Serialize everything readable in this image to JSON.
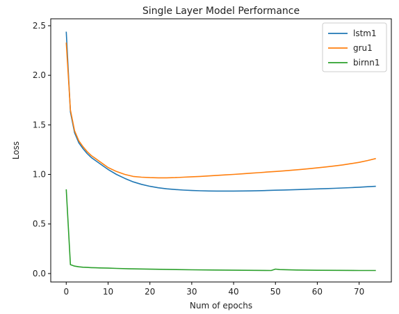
{
  "chart_data": {
    "type": "line",
    "title": "Single Layer Model Performance",
    "xlabel": "Num of epochs",
    "ylabel": "Loss",
    "xlim": [
      -3.7,
      77.7
    ],
    "ylim": [
      -0.085,
      2.57
    ],
    "xticks": [
      0,
      10,
      20,
      30,
      40,
      50,
      60,
      70
    ],
    "yticks": [
      0.0,
      0.5,
      1.0,
      1.5,
      2.0,
      2.5
    ],
    "ytick_labels": [
      "0.0",
      "0.5",
      "1.0",
      "1.5",
      "2.0",
      "2.5"
    ],
    "legend_position": "top-right",
    "grid": false,
    "series": [
      {
        "name": "lstm1",
        "color": "#1f77b4",
        "x": [
          0,
          1,
          2,
          3,
          4,
          5,
          6,
          7,
          8,
          9,
          10,
          12,
          14,
          16,
          18,
          20,
          22,
          24,
          26,
          28,
          30,
          32,
          34,
          36,
          38,
          40,
          42,
          44,
          46,
          48,
          50,
          52,
          54,
          56,
          58,
          60,
          62,
          64,
          66,
          68,
          70,
          72,
          74
        ],
        "values": [
          2.44,
          1.63,
          1.42,
          1.32,
          1.26,
          1.21,
          1.17,
          1.14,
          1.11,
          1.08,
          1.05,
          1.0,
          0.96,
          0.925,
          0.9,
          0.88,
          0.865,
          0.855,
          0.848,
          0.842,
          0.838,
          0.835,
          0.833,
          0.832,
          0.832,
          0.832,
          0.833,
          0.834,
          0.836,
          0.838,
          0.841,
          0.843,
          0.845,
          0.848,
          0.851,
          0.854,
          0.857,
          0.86,
          0.863,
          0.867,
          0.871,
          0.876,
          0.88
        ]
      },
      {
        "name": "gru1",
        "color": "#ff7f0e",
        "x": [
          0,
          1,
          2,
          3,
          4,
          5,
          6,
          7,
          8,
          9,
          10,
          12,
          14,
          16,
          18,
          20,
          22,
          24,
          26,
          28,
          30,
          32,
          34,
          36,
          38,
          40,
          42,
          44,
          46,
          48,
          50,
          52,
          54,
          56,
          58,
          60,
          62,
          64,
          66,
          68,
          70,
          72,
          74
        ],
        "values": [
          2.33,
          1.65,
          1.44,
          1.34,
          1.28,
          1.23,
          1.19,
          1.16,
          1.13,
          1.1,
          1.07,
          1.03,
          1.0,
          0.98,
          0.972,
          0.968,
          0.966,
          0.966,
          0.968,
          0.972,
          0.976,
          0.98,
          0.985,
          0.99,
          0.995,
          1.0,
          1.006,
          1.012,
          1.018,
          1.024,
          1.03,
          1.036,
          1.043,
          1.05,
          1.058,
          1.066,
          1.075,
          1.085,
          1.096,
          1.108,
          1.122,
          1.14,
          1.16
        ]
      },
      {
        "name": "birnn1",
        "color": "#2ca02c",
        "x": [
          0,
          1,
          2,
          3,
          4,
          5,
          6,
          7,
          8,
          9,
          10,
          12,
          15,
          20,
          25,
          30,
          35,
          40,
          45,
          49,
          50,
          51,
          55,
          60,
          65,
          70,
          74
        ],
        "values": [
          0.85,
          0.09,
          0.075,
          0.068,
          0.064,
          0.062,
          0.06,
          0.058,
          0.057,
          0.056,
          0.055,
          0.052,
          0.048,
          0.044,
          0.041,
          0.038,
          0.036,
          0.034,
          0.032,
          0.031,
          0.045,
          0.04,
          0.036,
          0.033,
          0.032,
          0.031,
          0.031
        ]
      }
    ]
  }
}
